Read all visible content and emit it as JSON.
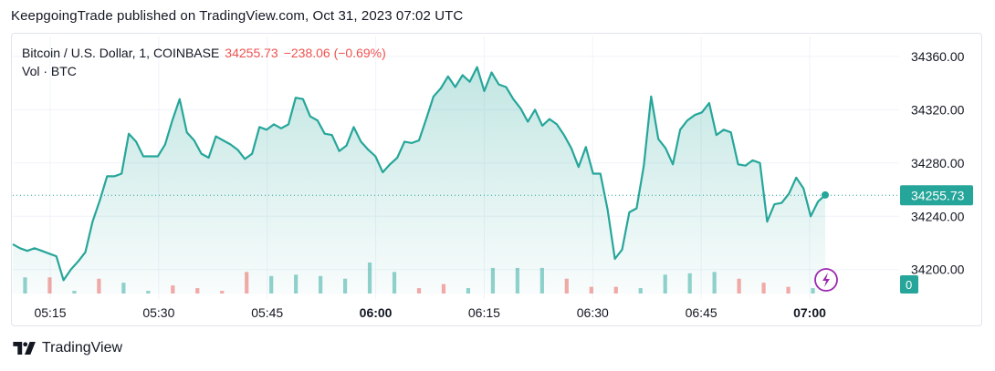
{
  "header": {
    "publisher_line": "KeepgoingTrade published on TradingView.com, Oct 31, 2023 07:02 UTC"
  },
  "legend": {
    "symbol": "Bitcoin / U.S. Dollar, 1, COINBASE",
    "last": "34255.73",
    "change": "−238.06 (−0.69%)",
    "volume_label": "Vol · BTC"
  },
  "price_badge": "34255.73",
  "volume_badge": "0",
  "brand": {
    "name": "TradingView"
  },
  "colors": {
    "line": "#26a69a",
    "fill": "#26a69a",
    "vol_up": "#26a69a",
    "vol_down": "#ef5350",
    "badge": "#26a69a",
    "alert": "#9c27b0",
    "grid": "#f0f3fa"
  },
  "chart_data": {
    "type": "line",
    "title": "Bitcoin / U.S. Dollar, 1, COINBASE",
    "xlabel": "",
    "ylabel": "",
    "x_ticks": [
      "05:15",
      "05:30",
      "05:45",
      "06:00",
      "06:15",
      "06:30",
      "06:45",
      "07:00"
    ],
    "x_ticks_bold": [
      "06:00",
      "07:00"
    ],
    "y_ticks": [
      34200.0,
      34240.0,
      34280.0,
      34320.0,
      34360.0
    ],
    "ylim": [
      34182,
      34375
    ],
    "last_price": 34255.73,
    "grid": true,
    "series": [
      {
        "values": [
          34219,
          34216,
          34214,
          34216,
          34214,
          34212,
          34210,
          34192,
          34200,
          34206,
          34213,
          34236,
          34252,
          34270,
          34270,
          34272,
          34302,
          34296,
          34285,
          34285,
          34285,
          34294,
          34312,
          34328,
          34303,
          34297,
          34287,
          34284,
          34300,
          34297,
          34294,
          34290,
          34283,
          34287,
          34307,
          34305,
          34309,
          34306,
          34309,
          34329,
          34328,
          34315,
          34312,
          34302,
          34301,
          34289,
          34293,
          34307,
          34296,
          34290,
          34285,
          34273,
          34279,
          34284,
          34296,
          34295,
          34297,
          34313,
          34330,
          34336,
          34345,
          34337,
          34346,
          34341,
          34352,
          34334,
          34348,
          34339,
          34337,
          34328,
          34321,
          34311,
          34320,
          34308,
          34313,
          34309,
          34301,
          34291,
          34277,
          34292,
          34272,
          34272,
          34245,
          34208,
          34215,
          34243,
          34246,
          34278,
          34330,
          34298,
          34291,
          34279,
          34305,
          34312,
          34316,
          34318,
          34325,
          34301,
          34305,
          34303,
          34279,
          34278,
          34282,
          34280,
          34236,
          34249,
          34250,
          34257,
          34269,
          34261,
          34240,
          34251,
          34256
        ]
      }
    ],
    "volume": [
      {
        "v": 1.2,
        "d": "up"
      },
      {
        "v": 1.2,
        "d": "down"
      },
      {
        "v": 0.2,
        "d": "up"
      },
      {
        "v": 1.1,
        "d": "down"
      },
      {
        "v": 0.8,
        "d": "up"
      },
      {
        "v": 0.2,
        "d": "up"
      },
      {
        "v": 0.6,
        "d": "down"
      },
      {
        "v": 0.4,
        "d": "down"
      },
      {
        "v": 0.2,
        "d": "down"
      },
      {
        "v": 1.6,
        "d": "down"
      },
      {
        "v": 1.3,
        "d": "up"
      },
      {
        "v": 1.4,
        "d": "up"
      },
      {
        "v": 1.3,
        "d": "up"
      },
      {
        "v": 1.1,
        "d": "up"
      },
      {
        "v": 2.3,
        "d": "up"
      },
      {
        "v": 1.6,
        "d": "up"
      },
      {
        "v": 0.4,
        "d": "down"
      },
      {
        "v": 0.7,
        "d": "down"
      },
      {
        "v": 0.4,
        "d": "up"
      },
      {
        "v": 1.9,
        "d": "up"
      },
      {
        "v": 1.9,
        "d": "up"
      },
      {
        "v": 1.9,
        "d": "up"
      },
      {
        "v": 1.1,
        "d": "down"
      },
      {
        "v": 0.5,
        "d": "down"
      },
      {
        "v": 0.5,
        "d": "down"
      },
      {
        "v": 0.4,
        "d": "up"
      },
      {
        "v": 1.4,
        "d": "up"
      },
      {
        "v": 1.5,
        "d": "up"
      },
      {
        "v": 1.6,
        "d": "up"
      },
      {
        "v": 1.1,
        "d": "down"
      },
      {
        "v": 0.8,
        "d": "down"
      },
      {
        "v": 0.5,
        "d": "down"
      },
      {
        "v": 0.4,
        "d": "up"
      }
    ]
  }
}
